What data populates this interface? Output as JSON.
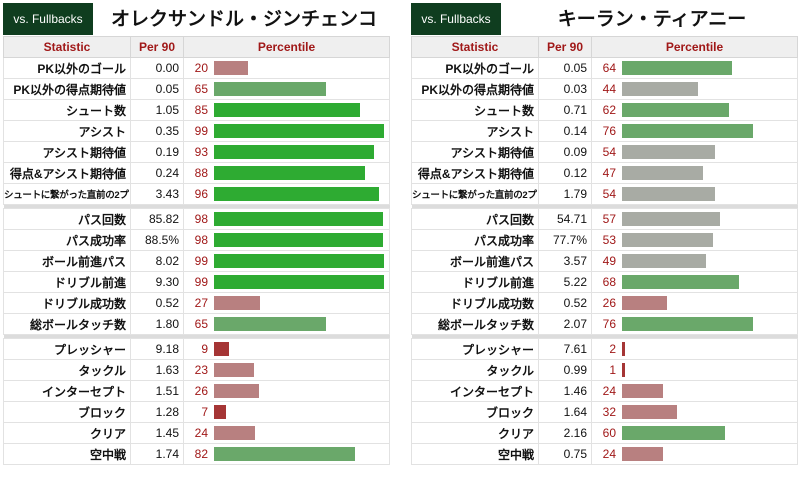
{
  "headers": {
    "statistic": "Statistic",
    "per90": "Per 90",
    "percentile": "Percentile"
  },
  "colors": {
    "high": "#2eab32",
    "mid_high": "#6aa86a",
    "neutral": "#a8aba4",
    "mid_low": "#b88080",
    "low": "#a53535"
  },
  "chart_data": [
    {
      "type": "table",
      "tag": "vs. Fullbacks",
      "player": "オレクサンドル・ジンチェンコ",
      "groups": [
        [
          {
            "stat": "PK以外のゴール",
            "per90": "0.00",
            "percentile": 20
          },
          {
            "stat": "PK以外の得点期待値",
            "per90": "0.05",
            "percentile": 65
          },
          {
            "stat": "シュート数",
            "per90": "1.05",
            "percentile": 85
          },
          {
            "stat": "アシスト",
            "per90": "0.35",
            "percentile": 99
          },
          {
            "stat": "アシスト期待値",
            "per90": "0.19",
            "percentile": 93
          },
          {
            "stat": "得点&アシスト期待値",
            "per90": "0.24",
            "percentile": 88
          },
          {
            "stat": "シュートに繋がった直前の2プレイ",
            "per90": "3.43",
            "percentile": 96
          }
        ],
        [
          {
            "stat": "パス回数",
            "per90": "85.82",
            "percentile": 98
          },
          {
            "stat": "パス成功率",
            "per90": "88.5%",
            "percentile": 98
          },
          {
            "stat": "ボール前進パス",
            "per90": "8.02",
            "percentile": 99
          },
          {
            "stat": "ドリブル前進",
            "per90": "9.30",
            "percentile": 99
          },
          {
            "stat": "ドリブル成功数",
            "per90": "0.52",
            "percentile": 27
          },
          {
            "stat": "総ボールタッチ数",
            "per90": "1.80",
            "percentile": 65
          }
        ],
        [
          {
            "stat": "プレッシャー",
            "per90": "9.18",
            "percentile": 9
          },
          {
            "stat": "タックル",
            "per90": "1.63",
            "percentile": 23
          },
          {
            "stat": "インターセプト",
            "per90": "1.51",
            "percentile": 26
          },
          {
            "stat": "ブロック",
            "per90": "1.28",
            "percentile": 7
          },
          {
            "stat": "クリア",
            "per90": "1.45",
            "percentile": 24
          },
          {
            "stat": "空中戦",
            "per90": "1.74",
            "percentile": 82
          }
        ]
      ]
    },
    {
      "type": "table",
      "tag": "vs. Fullbacks",
      "player": "キーラン・ティアニー",
      "groups": [
        [
          {
            "stat": "PK以外のゴール",
            "per90": "0.05",
            "percentile": 64
          },
          {
            "stat": "PK以外の得点期待値",
            "per90": "0.03",
            "percentile": 44
          },
          {
            "stat": "シュート数",
            "per90": "0.71",
            "percentile": 62
          },
          {
            "stat": "アシスト",
            "per90": "0.14",
            "percentile": 76
          },
          {
            "stat": "アシスト期待値",
            "per90": "0.09",
            "percentile": 54
          },
          {
            "stat": "得点&アシスト期待値",
            "per90": "0.12",
            "percentile": 47
          },
          {
            "stat": "シュートに繋がった直前の2プレイ",
            "per90": "1.79",
            "percentile": 54
          }
        ],
        [
          {
            "stat": "パス回数",
            "per90": "54.71",
            "percentile": 57
          },
          {
            "stat": "パス成功率",
            "per90": "77.7%",
            "percentile": 53
          },
          {
            "stat": "ボール前進パス",
            "per90": "3.57",
            "percentile": 49
          },
          {
            "stat": "ドリブル前進",
            "per90": "5.22",
            "percentile": 68
          },
          {
            "stat": "ドリブル成功数",
            "per90": "0.52",
            "percentile": 26
          },
          {
            "stat": "総ボールタッチ数",
            "per90": "2.07",
            "percentile": 76
          }
        ],
        [
          {
            "stat": "プレッシャー",
            "per90": "7.61",
            "percentile": 2
          },
          {
            "stat": "タックル",
            "per90": "0.99",
            "percentile": 1
          },
          {
            "stat": "インターセプト",
            "per90": "1.46",
            "percentile": 24
          },
          {
            "stat": "ブロック",
            "per90": "1.64",
            "percentile": 32
          },
          {
            "stat": "クリア",
            "per90": "2.16",
            "percentile": 60
          },
          {
            "stat": "空中戦",
            "per90": "0.75",
            "percentile": 24
          }
        ]
      ]
    }
  ]
}
